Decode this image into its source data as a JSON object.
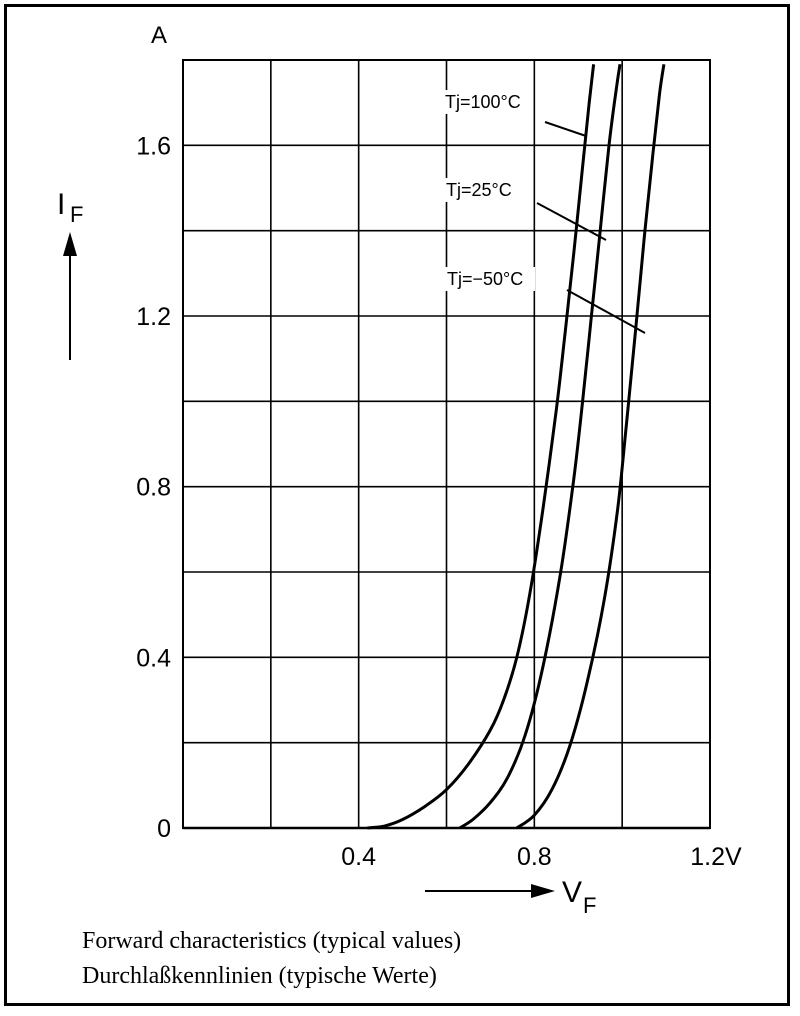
{
  "chart_data": {
    "type": "line",
    "caption_en": "Forward characteristics (typical values)",
    "caption_de": "Durchlaßkennlinien (typische Werte)",
    "y_unit": "A",
    "x_unit_tick": "1.2V",
    "xlabel_main": "V",
    "xlabel_sub": "F",
    "ylabel_main": "I",
    "ylabel_sub": "F",
    "xlim": [
      0,
      1.2
    ],
    "ylim": [
      0,
      1.8
    ],
    "x_major_ticks": [
      {
        "value": 0.4,
        "label": "0.4"
      },
      {
        "value": 0.8,
        "label": "0.8"
      },
      {
        "value": 1.2,
        "label": "1.2V"
      }
    ],
    "y_major_ticks": [
      {
        "value": 0,
        "label": "0"
      },
      {
        "value": 0.4,
        "label": "0.4"
      },
      {
        "value": 0.8,
        "label": "0.8"
      },
      {
        "value": 1.2,
        "label": "1.2"
      },
      {
        "value": 1.6,
        "label": "1.6"
      }
    ],
    "x_grid": [
      0.2,
      0.4,
      0.6,
      0.8,
      1.0
    ],
    "y_grid": [
      0.2,
      0.4,
      0.6,
      0.8,
      1.0,
      1.2,
      1.4,
      1.6
    ],
    "grid": true,
    "series": [
      {
        "name": "Tj=100°C",
        "x": [
          0.42,
          0.46,
          0.5,
          0.55,
          0.6,
          0.65,
          0.7,
          0.73,
          0.76,
          0.79,
          0.82,
          0.85,
          0.87,
          0.89,
          0.91,
          0.925,
          0.935
        ],
        "y": [
          0,
          0.005,
          0.02,
          0.05,
          0.09,
          0.15,
          0.23,
          0.3,
          0.4,
          0.55,
          0.75,
          0.98,
          1.16,
          1.35,
          1.55,
          1.7,
          1.79
        ]
      },
      {
        "name": "Tj=25°C",
        "x": [
          0.63,
          0.66,
          0.7,
          0.74,
          0.78,
          0.82,
          0.86,
          0.89,
          0.91,
          0.93,
          0.95,
          0.97,
          0.985,
          0.995
        ],
        "y": [
          0,
          0.02,
          0.06,
          0.12,
          0.22,
          0.38,
          0.6,
          0.82,
          1.0,
          1.2,
          1.4,
          1.6,
          1.72,
          1.79
        ]
      },
      {
        "name": "Tj=−50°C",
        "x": [
          0.76,
          0.8,
          0.84,
          0.88,
          0.92,
          0.96,
          0.99,
          1.01,
          1.03,
          1.05,
          1.07,
          1.085,
          1.095
        ],
        "y": [
          0,
          0.03,
          0.09,
          0.19,
          0.34,
          0.54,
          0.75,
          0.95,
          1.16,
          1.38,
          1.58,
          1.72,
          1.79
        ]
      }
    ]
  }
}
